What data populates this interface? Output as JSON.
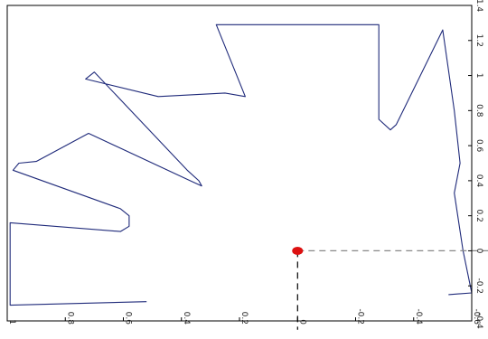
{
  "chart_data": {
    "type": "line",
    "title": "",
    "xlabel": "",
    "ylabel": "",
    "orientation": "rotated-90",
    "x_axis": {
      "position": "bottom",
      "direction": "reversed",
      "range": [
        1.0,
        -0.6
      ],
      "ticks": [
        {
          "value": 1.0,
          "label": "1"
        },
        {
          "value": 0.8,
          "label": "0.8"
        },
        {
          "value": 0.6,
          "label": "0.6"
        },
        {
          "value": 0.4,
          "label": "0.4"
        },
        {
          "value": 0.2,
          "label": "0.2"
        },
        {
          "value": 0.0,
          "label": "0"
        },
        {
          "value": -0.2,
          "label": "-0.2"
        },
        {
          "value": -0.4,
          "label": "-0.4"
        },
        {
          "value": -0.6,
          "label": "-0.6"
        }
      ]
    },
    "y_axis": {
      "position": "right",
      "range": [
        -0.4,
        1.4
      ],
      "ticks": [
        {
          "value": -0.4,
          "label": "-0.4"
        },
        {
          "value": -0.2,
          "label": "-0.2"
        },
        {
          "value": 0.0,
          "label": "0"
        },
        {
          "value": 0.2,
          "label": "0.2"
        },
        {
          "value": 0.4,
          "label": "0.4"
        },
        {
          "value": 0.6,
          "label": "0.6"
        },
        {
          "value": 0.8,
          "label": "0.8"
        },
        {
          "value": 1.0,
          "label": "1"
        },
        {
          "value": 1.2,
          "label": "1.2"
        },
        {
          "value": 1.4,
          "label": "1.4"
        }
      ]
    },
    "grid": false,
    "series": [
      {
        "kind": "scan-outline",
        "color": "#1f2a7a",
        "points": [
          [
            0.52,
            -0.29
          ],
          [
            0.99,
            -0.31
          ],
          [
            0.99,
            0.16
          ],
          [
            0.61,
            0.11
          ],
          [
            0.58,
            0.14
          ],
          [
            0.58,
            0.2
          ],
          [
            0.61,
            0.24
          ],
          [
            0.98,
            0.46
          ],
          [
            0.96,
            0.5
          ],
          [
            0.9,
            0.51
          ],
          [
            0.72,
            0.67
          ],
          [
            0.37,
            0.4
          ],
          [
            0.33,
            0.37
          ],
          [
            0.34,
            0.4
          ],
          [
            0.38,
            0.46
          ],
          [
            0.7,
            1.02
          ],
          [
            0.73,
            0.98
          ],
          [
            0.48,
            0.88
          ],
          [
            0.25,
            0.9
          ],
          [
            0.18,
            0.88
          ],
          [
            0.28,
            1.29
          ],
          [
            -0.28,
            1.29
          ],
          [
            -0.28,
            0.75
          ],
          [
            -0.32,
            0.69
          ],
          [
            -0.34,
            0.72
          ],
          [
            -0.5,
            1.26
          ],
          [
            -0.54,
            0.8
          ],
          [
            -0.56,
            0.5
          ],
          [
            -0.54,
            0.33
          ],
          [
            -0.57,
            0.0
          ],
          [
            -0.6,
            -0.24
          ],
          [
            -0.52,
            -0.25
          ]
        ]
      },
      {
        "kind": "dashed-axis-line",
        "color": "#888888",
        "points": [
          [
            0.0,
            0.0
          ],
          [
            -0.66,
            0.0
          ]
        ]
      },
      {
        "kind": "dashed-axis-line",
        "color": "#000000",
        "points": [
          [
            0.0,
            0.0
          ],
          [
            0.0,
            -0.45
          ]
        ]
      }
    ],
    "marker": {
      "x": 0.0,
      "y": 0.0,
      "color": "#dd1111"
    }
  }
}
